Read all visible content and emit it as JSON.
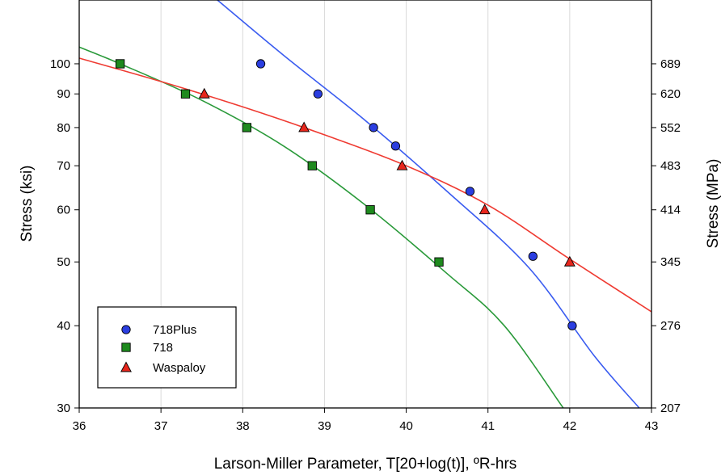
{
  "chart_data": {
    "type": "scatter",
    "title": "",
    "xlabel": "Larson-Miller Parameter, T[20+log(t)], ºR-hrs",
    "ylabel": "Stress (ksi)",
    "y2label": "Stress (MPa)",
    "xlim": [
      36,
      43
    ],
    "ylim": [
      30,
      125
    ],
    "yscale": "log",
    "x_ticks": [
      36,
      37,
      38,
      39,
      40,
      41,
      42,
      43
    ],
    "y_ticks": [
      30,
      40,
      50,
      60,
      70,
      80,
      90,
      100
    ],
    "y2_ticks": [
      {
        "at": 30,
        "label": "207"
      },
      {
        "at": 40,
        "label": "276"
      },
      {
        "at": 50,
        "label": "345"
      },
      {
        "at": 60,
        "label": "414"
      },
      {
        "at": 70,
        "label": "483"
      },
      {
        "at": 80,
        "label": "552"
      },
      {
        "at": 90,
        "label": "620"
      },
      {
        "at": 100,
        "label": "689"
      }
    ],
    "grid": "vertical",
    "legend_position": "bottom-left",
    "series": [
      {
        "name": "718Plus",
        "marker": "circle",
        "color": "#2b3ee0",
        "line_color": "#3a5cf0",
        "points": [
          [
            38.22,
            100
          ],
          [
            38.92,
            90
          ],
          [
            39.6,
            80
          ],
          [
            39.87,
            75
          ],
          [
            40.78,
            64
          ],
          [
            41.55,
            51
          ],
          [
            42.03,
            40
          ]
        ],
        "fit": [
          [
            37.69,
            125
          ],
          [
            38.5,
            103
          ],
          [
            39.5,
            82
          ],
          [
            40.5,
            64
          ],
          [
            41.5,
            49
          ],
          [
            42.3,
            36
          ],
          [
            42.85,
            30
          ]
        ]
      },
      {
        "name": "718",
        "marker": "square",
        "color": "#1e8a1e",
        "line_color": "#2a9a3a",
        "points": [
          [
            36.5,
            100
          ],
          [
            37.3,
            90
          ],
          [
            38.05,
            80
          ],
          [
            38.85,
            70
          ],
          [
            39.56,
            60
          ],
          [
            40.4,
            50
          ]
        ],
        "fit": [
          [
            36.0,
            106
          ],
          [
            36.5,
            100
          ],
          [
            37.5,
            88
          ],
          [
            38.5,
            75
          ],
          [
            39.5,
            61
          ],
          [
            40.5,
            48
          ],
          [
            41.2,
            40
          ],
          [
            41.92,
            30
          ]
        ]
      },
      {
        "name": "Waspaloy",
        "marker": "triangle",
        "color": "#e8261c",
        "line_color": "#ef3b32",
        "points": [
          [
            37.53,
            90
          ],
          [
            38.75,
            80
          ],
          [
            39.95,
            70
          ],
          [
            40.96,
            60
          ],
          [
            42.0,
            50
          ]
        ],
        "fit": [
          [
            36.0,
            102
          ],
          [
            37.0,
            94
          ],
          [
            38.0,
            86
          ],
          [
            39.0,
            78
          ],
          [
            40.0,
            70
          ],
          [
            41.0,
            61
          ],
          [
            42.0,
            50.5
          ],
          [
            43.0,
            42
          ]
        ]
      }
    ]
  }
}
